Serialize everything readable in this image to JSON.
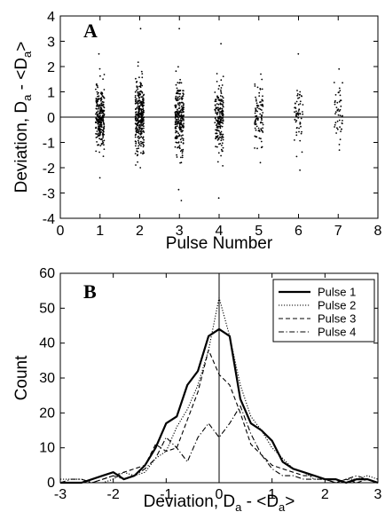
{
  "chart_data": [
    {
      "panel": "A",
      "type": "scatter",
      "xlabel": "Pulse Number",
      "ylabel": "Deviation, D",
      "ylabel_sub": "a",
      "ylabel_tail": " - <D",
      "ylabel_sub2": "a",
      "ylabel_end": ">",
      "xlim": [
        0,
        8
      ],
      "ylim": [
        -4,
        4
      ],
      "xticks": [
        "0",
        "1",
        "2",
        "3",
        "4",
        "5",
        "6",
        "7",
        "8"
      ],
      "yticks": [
        "-4",
        "-3",
        "-2",
        "-1",
        "0",
        "1",
        "2",
        "3",
        "4"
      ],
      "reference_line_y": 0,
      "groups": [
        {
          "x": 1,
          "count": 260,
          "spread": 0.85,
          "min": -2.4,
          "max": 2.5
        },
        {
          "x": 2,
          "count": 300,
          "spread": 0.9,
          "min": -2.0,
          "max": 3.5
        },
        {
          "x": 3,
          "count": 240,
          "spread": 0.95,
          "min": -3.3,
          "max": 3.5
        },
        {
          "x": 4,
          "count": 190,
          "spread": 0.9,
          "min": -3.2,
          "max": 2.9
        },
        {
          "x": 5,
          "count": 90,
          "spread": 0.85,
          "min": -1.8,
          "max": 1.7
        },
        {
          "x": 6,
          "count": 60,
          "spread": 0.85,
          "min": -2.1,
          "max": 2.5
        },
        {
          "x": 7,
          "count": 45,
          "spread": 0.8,
          "min": -1.3,
          "max": 1.9
        }
      ]
    },
    {
      "panel": "B",
      "type": "line",
      "xlabel": "Deviation, D",
      "xlabel_sub": "a",
      "xlabel_tail": " - <D",
      "xlabel_sub2": "a",
      "xlabel_end": ">",
      "ylabel": "Count",
      "xlim": [
        -3,
        3
      ],
      "ylim": [
        0,
        60
      ],
      "xticks": [
        "-3",
        "-2",
        "-1",
        "0",
        "1",
        "2",
        "3"
      ],
      "yticks": [
        "0",
        "10",
        "20",
        "30",
        "40",
        "50",
        "60"
      ],
      "reference_line_x": 0,
      "x": [
        -3.0,
        -2.8,
        -2.6,
        -2.4,
        -2.2,
        -2.0,
        -1.8,
        -1.6,
        -1.4,
        -1.2,
        -1.0,
        -0.8,
        -0.6,
        -0.4,
        -0.2,
        0.0,
        0.2,
        0.4,
        0.6,
        0.8,
        1.0,
        1.2,
        1.4,
        1.6,
        1.8,
        2.0,
        2.2,
        2.4,
        2.6,
        2.8,
        3.0
      ],
      "series": [
        {
          "name": "Pulse 1",
          "style": "solid",
          "values": [
            0,
            0,
            0,
            1,
            2,
            3,
            1,
            2,
            5,
            10,
            17,
            19,
            28,
            32,
            42,
            44,
            42,
            24,
            17,
            15,
            12,
            6,
            4,
            3,
            2,
            1,
            1,
            0,
            1,
            1,
            0
          ]
        },
        {
          "name": "Pulse 2",
          "style": "dotted",
          "values": [
            1,
            1,
            1,
            0,
            0,
            1,
            3,
            2,
            3,
            7,
            9,
            16,
            21,
            28,
            38,
            53,
            42,
            28,
            19,
            15,
            10,
            7,
            4,
            3,
            1,
            1,
            0,
            1,
            1,
            2,
            1
          ]
        },
        {
          "name": "Pulse 3",
          "style": "dashed",
          "values": [
            0,
            0,
            0,
            0,
            1,
            2,
            3,
            4,
            5,
            11,
            9,
            10,
            18,
            26,
            38,
            31,
            28,
            20,
            11,
            8,
            5,
            4,
            3,
            2,
            2,
            1,
            0,
            1,
            0,
            1,
            0
          ]
        },
        {
          "name": "Pulse 4",
          "style": "dashdot",
          "values": [
            0,
            1,
            1,
            0,
            1,
            2,
            1,
            2,
            4,
            7,
            13,
            10,
            6,
            13,
            17,
            13,
            17,
            22,
            14,
            8,
            4,
            2,
            2,
            1,
            1,
            1,
            0,
            1,
            2,
            1,
            0
          ]
        }
      ]
    }
  ]
}
